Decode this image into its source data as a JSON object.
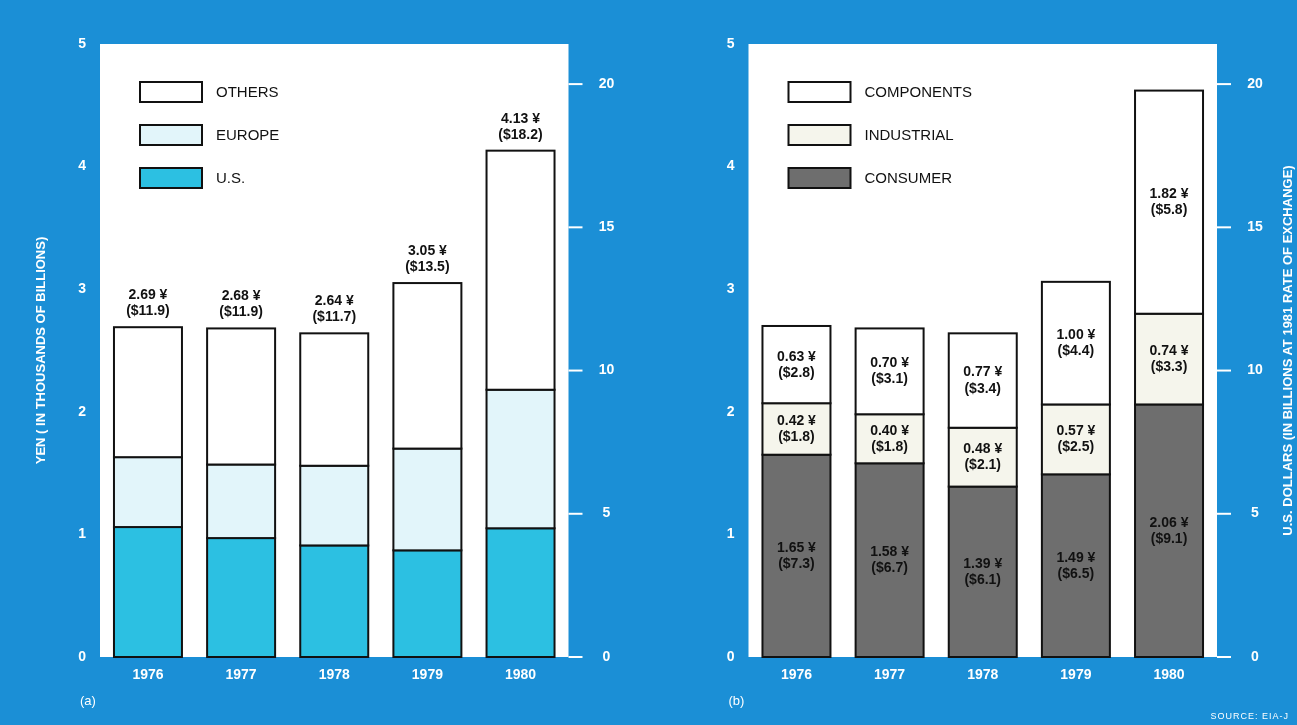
{
  "chart_data": [
    {
      "type": "bar",
      "stacked": true,
      "categories": [
        "1976",
        "1977",
        "1978",
        "1979",
        "1980"
      ],
      "series": [
        {
          "name": "U.S.",
          "color": "#2cc0e2",
          "values": [
            1.06,
            0.97,
            0.91,
            0.87,
            1.05
          ]
        },
        {
          "name": "EUROPE",
          "color": "#e2f5fa",
          "values": [
            0.57,
            0.6,
            0.65,
            0.83,
            1.13
          ]
        },
        {
          "name": "OTHERS",
          "color": "#ffffff",
          "values": [
            1.06,
            1.11,
            1.08,
            1.35,
            1.95
          ]
        }
      ],
      "totals": [
        "2.69 ¥\n($11.9)",
        "2.68 ¥\n($11.9)",
        "2.64 ¥\n($11.7)",
        "3.05 ¥\n($13.5)",
        "4.13 ¥\n($18.2)"
      ],
      "ylim": [
        0,
        5
      ],
      "yticks": [
        0,
        1,
        2,
        3,
        4,
        5
      ],
      "y2lim": [
        0,
        21.4
      ],
      "y2ticks": [
        0,
        5,
        10,
        15,
        20
      ],
      "ylabel": "YEN ( IN THOUSANDS OF BILLIONS)",
      "legend": "top left",
      "annotations": [
        "(a)"
      ]
    },
    {
      "type": "bar",
      "stacked": true,
      "categories": [
        "1976",
        "1977",
        "1978",
        "1979",
        "1980"
      ],
      "series": [
        {
          "name": "CONSUMER",
          "color": "#6e6e6e",
          "values": [
            1.65,
            1.58,
            1.39,
            1.49,
            2.06
          ],
          "value_labels": [
            "1.65 ¥\n($7.3)",
            "1.58 ¥\n($6.7)",
            "1.39 ¥\n($6.1)",
            "1.49 ¥\n($6.5)",
            "2.06 ¥\n($9.1)"
          ]
        },
        {
          "name": "INDUSTRIAL",
          "color": "#f5f5ec",
          "values": [
            0.42,
            0.4,
            0.48,
            0.57,
            0.74
          ],
          "value_labels": [
            "0.42 ¥\n($1.8)",
            "0.40 ¥\n($1.8)",
            "0.48 ¥\n($2.1)",
            "0.57 ¥\n($2.5)",
            "0.74 ¥\n($3.3)"
          ]
        },
        {
          "name": "COMPONENTS",
          "color": "#ffffff",
          "values": [
            0.63,
            0.7,
            0.77,
            1.0,
            1.82
          ],
          "value_labels": [
            "0.63 ¥\n($2.8)",
            "0.70 ¥\n($3.1)",
            "0.77 ¥\n($3.4)",
            "1.00 ¥\n($4.4)",
            "1.82 ¥\n($5.8)"
          ]
        }
      ],
      "ylim": [
        0,
        5
      ],
      "yticks": [
        0,
        1,
        2,
        3,
        4,
        5
      ],
      "y2lim": [
        0,
        21.4
      ],
      "y2ticks": [
        0,
        5,
        10,
        15,
        20
      ],
      "y2label": "U.S. DOLLARS (IN BILLIONS AT 1981 RATE OF EXCHANGE)",
      "legend": "top left",
      "annotations": [
        "(b)",
        "SOURCE: EIA-J"
      ]
    }
  ]
}
